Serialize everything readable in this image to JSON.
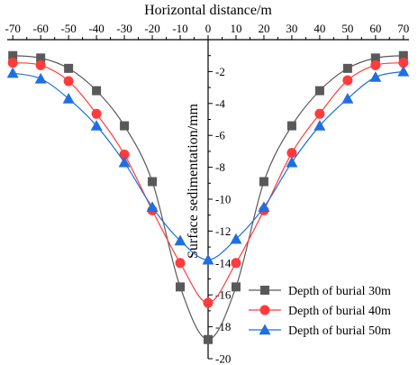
{
  "chart_data": {
    "type": "line",
    "xlabel": "Horizontal distance/m",
    "ylabel": "Surface sedimentation/mm",
    "xlim": [
      -72,
      72
    ],
    "ylim": [
      -20,
      0
    ],
    "x_axis_position": "top",
    "y_axis_position": "center at x=0",
    "xticks": [
      -70,
      -60,
      -50,
      -40,
      -30,
      -20,
      -10,
      0,
      10,
      20,
      30,
      40,
      50,
      60,
      70
    ],
    "yticks": [
      0,
      -2,
      -4,
      -6,
      -8,
      -10,
      -12,
      -14,
      -16,
      -18,
      -20
    ],
    "grid": false,
    "legend_position": "bottom-right",
    "x": [
      -70,
      -60,
      -50,
      -40,
      -30,
      -20,
      -10,
      0,
      10,
      20,
      30,
      40,
      50,
      60,
      70
    ],
    "series": [
      {
        "name": "Depth of burial 30m",
        "color": "#595959",
        "marker": "square",
        "values": [
          -1.0,
          -1.15,
          -1.8,
          -3.2,
          -5.4,
          -8.9,
          -15.5,
          -18.8,
          -15.5,
          -8.9,
          -5.4,
          -3.2,
          -1.8,
          -1.15,
          -1.0
        ]
      },
      {
        "name": "Depth of burial 40m",
        "color": "#ff3b3b",
        "marker": "circle",
        "values": [
          -1.45,
          -1.6,
          -2.6,
          -4.65,
          -7.2,
          -10.7,
          -14.0,
          -16.5,
          -14.0,
          -10.7,
          -7.1,
          -4.65,
          -2.55,
          -1.6,
          -1.45
        ]
      },
      {
        "name": "Depth of burial 50m",
        "color": "#1f6fe0",
        "marker": "triangle",
        "values": [
          -2.1,
          -2.45,
          -3.7,
          -5.4,
          -7.7,
          -10.5,
          -12.6,
          -13.8,
          -12.5,
          -10.5,
          -7.7,
          -5.4,
          -3.7,
          -2.35,
          -2.0
        ]
      }
    ]
  }
}
